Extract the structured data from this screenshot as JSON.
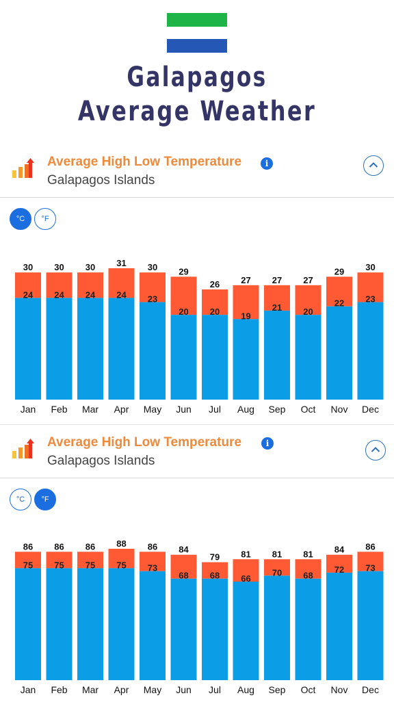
{
  "page": {
    "title_line1": "Galapagos",
    "title_line2": "Average Weather"
  },
  "colors": {
    "high": "#ff5a34",
    "low": "#0b9ee6",
    "accent": "#1a6ee0",
    "title": "#343466",
    "flag_green": "#1fb447",
    "flag_blue": "#2457b6"
  },
  "sections": [
    {
      "title": "Average High Low Temperature",
      "subtitle": "Galapagos Islands",
      "info_icon": "info-icon",
      "collapse_icon": "chevron-up-icon",
      "unit_celsius": "°C",
      "unit_fahrenheit": "°F",
      "active_unit": "celsius"
    },
    {
      "title": "Average High Low Temperature",
      "subtitle": "Galapagos Islands",
      "info_icon": "info-icon",
      "collapse_icon": "chevron-up-icon",
      "unit_celsius": "°C",
      "unit_fahrenheit": "°F",
      "active_unit": "fahrenheit"
    }
  ],
  "chart_data": [
    {
      "type": "bar",
      "unit": "°C",
      "categories": [
        "Jan",
        "Feb",
        "Mar",
        "Apr",
        "May",
        "Jun",
        "Jul",
        "Aug",
        "Sep",
        "Oct",
        "Nov",
        "Dec"
      ],
      "series": [
        {
          "values": [
            30,
            30,
            30,
            31,
            30,
            29,
            26,
            27,
            27,
            27,
            29,
            30
          ]
        },
        {
          "values": [
            24,
            24,
            24,
            24,
            23,
            20,
            20,
            19,
            21,
            20,
            22,
            23
          ]
        }
      ],
      "ylim": [
        0,
        31
      ],
      "grid": false,
      "legend": "none"
    },
    {
      "type": "bar",
      "unit": "°F",
      "categories": [
        "Jan",
        "Feb",
        "Mar",
        "Apr",
        "May",
        "Jun",
        "Jul",
        "Aug",
        "Sep",
        "Oct",
        "Nov",
        "Dec"
      ],
      "series": [
        {
          "values": [
            86,
            86,
            86,
            88,
            86,
            84,
            79,
            81,
            81,
            81,
            84,
            86
          ]
        },
        {
          "values": [
            75,
            75,
            75,
            75,
            73,
            68,
            68,
            66,
            70,
            68,
            72,
            73
          ]
        }
      ],
      "ylim": [
        0,
        88
      ],
      "grid": false,
      "legend": "none"
    }
  ]
}
